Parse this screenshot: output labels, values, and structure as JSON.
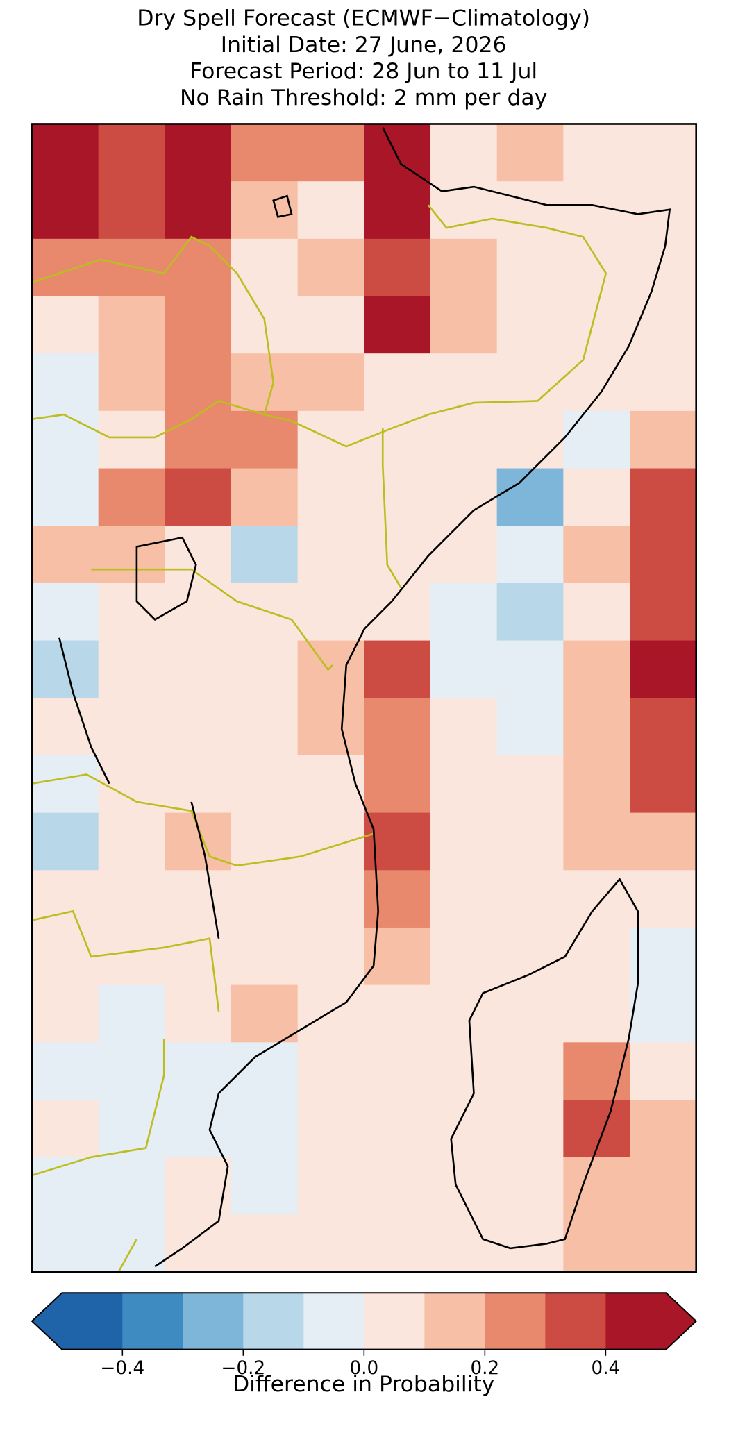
{
  "chart_data": {
    "type": "heatmap",
    "title": [
      "Dry Spell Forecast (ECMWF−Climatology)",
      "Initial Date: 27 June, 2026",
      "Forecast Period: 28 Jun to 11 Jul",
      "No Rain Threshold: 2 mm per day"
    ],
    "colorbar_label": "Difference in Probability",
    "levels": [
      -0.5,
      -0.4,
      -0.3,
      -0.2,
      -0.1,
      0,
      0.1,
      0.2,
      0.3,
      0.4,
      0.5
    ],
    "colors": [
      "#1f63a8",
      "#3d8bc1",
      "#7db6d9",
      "#b8d8ea",
      "#e4eef4",
      "#fae6dd",
      "#f7c0a6",
      "#e8896d",
      "#cc4c43",
      "#a91628"
    ],
    "extend": "both",
    "ticks": [
      {
        "value": -0.4,
        "label": "−0.4"
      },
      {
        "value": -0.2,
        "label": "−0.2"
      },
      {
        "value": 0,
        "label": "0.0"
      },
      0.2,
      0.4
    ],
    "grid": [
      [
        0.45,
        0.35,
        0.45,
        0.25,
        0.25,
        0.45,
        0.05,
        0.15,
        0.05,
        0.05
      ],
      [
        0.45,
        0.35,
        0.45,
        0.15,
        0.05,
        0.45,
        0.05,
        0.05,
        0.05,
        0.05
      ],
      [
        0.25,
        0.25,
        0.25,
        0.05,
        0.15,
        0.35,
        0.15,
        0.05,
        0.05,
        0.05
      ],
      [
        0.05,
        0.15,
        0.25,
        0.05,
        0.05,
        0.45,
        0.15,
        0.05,
        0.05,
        0.05
      ],
      [
        -0.05,
        0.15,
        0.25,
        0.15,
        0.15,
        0.05,
        0.05,
        0.05,
        0.05,
        0.05
      ],
      [
        -0.05,
        0.05,
        0.25,
        0.25,
        0.05,
        0.05,
        0.05,
        0.05,
        -0.05,
        0.15
      ],
      [
        -0.05,
        0.25,
        0.35,
        0.15,
        0.05,
        0.05,
        0.05,
        -0.25,
        0.05,
        0.35
      ],
      [
        0.15,
        0.15,
        0.05,
        -0.15,
        0.05,
        0.05,
        0.05,
        -0.05,
        0.15,
        0.35
      ],
      [
        -0.05,
        0.05,
        0.05,
        0.05,
        0.05,
        0.05,
        -0.05,
        -0.15,
        0.05,
        0.35
      ],
      [
        -0.15,
        0.05,
        0.05,
        0.05,
        0.15,
        0.35,
        -0.05,
        -0.05,
        0.15,
        0.45
      ],
      [
        0.05,
        0.05,
        0.05,
        0.05,
        0.15,
        0.25,
        0.05,
        -0.05,
        0.15,
        0.35
      ],
      [
        -0.05,
        0.05,
        0.05,
        0.05,
        0.05,
        0.25,
        0.05,
        0.05,
        0.15,
        0.35
      ],
      [
        -0.15,
        0.05,
        0.15,
        0.05,
        0.05,
        0.35,
        0.05,
        0.05,
        0.15,
        0.15
      ],
      [
        0.05,
        0.05,
        0.05,
        0.05,
        0.05,
        0.25,
        0.05,
        0.05,
        0.05,
        0.05
      ],
      [
        0.05,
        0.05,
        0.05,
        0.05,
        0.05,
        0.15,
        0.05,
        0.05,
        0.05,
        -0.05
      ],
      [
        0.05,
        -0.05,
        0.05,
        0.15,
        0.05,
        0.05,
        0.05,
        0.05,
        0.05,
        -0.05
      ],
      [
        -0.05,
        -0.05,
        -0.05,
        -0.05,
        0.05,
        0.05,
        0.05,
        0.05,
        0.25,
        0.05
      ],
      [
        0.05,
        -0.05,
        -0.05,
        -0.05,
        0.05,
        0.05,
        0.05,
        0.05,
        0.35,
        0.15
      ],
      [
        -0.05,
        -0.05,
        0.05,
        -0.05,
        0.05,
        0.05,
        0.05,
        0.05,
        0.15,
        0.15
      ],
      [
        -0.05,
        -0.05,
        0.05,
        0.05,
        0.05,
        0.05,
        0.05,
        0.05,
        0.15,
        0.15
      ]
    ]
  }
}
